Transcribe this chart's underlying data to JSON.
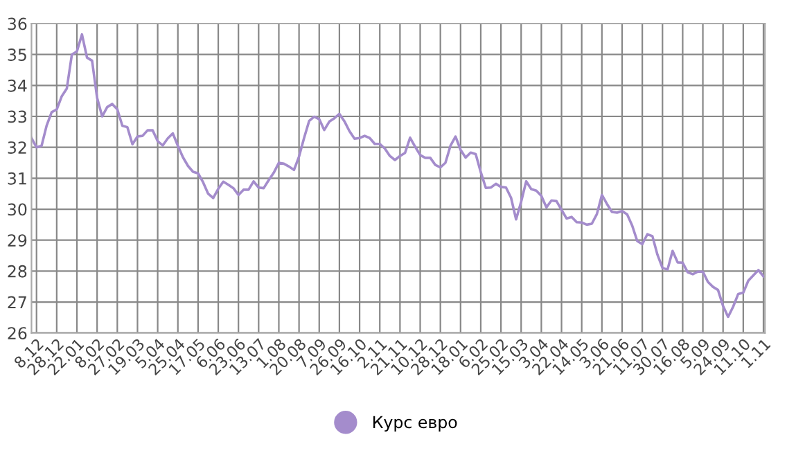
{
  "chart_data": {
    "type": "line",
    "categories": [
      null,
      "8.12",
      null,
      null,
      null,
      "28.12",
      null,
      null,
      null,
      "22.01",
      null,
      null,
      null,
      "8.02",
      null,
      null,
      null,
      "27.02",
      null,
      null,
      null,
      "19.03",
      null,
      null,
      null,
      "5.04",
      null,
      null,
      null,
      "25.04",
      null,
      null,
      null,
      "17.05",
      null,
      null,
      null,
      "6.06",
      null,
      null,
      null,
      "23.06",
      null,
      null,
      null,
      "13.07",
      null,
      null,
      null,
      "1.08",
      null,
      null,
      null,
      "20.08",
      null,
      null,
      null,
      "7.09",
      null,
      null,
      null,
      "26.09",
      null,
      null,
      null,
      "16.10",
      null,
      null,
      null,
      "2.11",
      null,
      null,
      null,
      "21.11",
      null,
      null,
      null,
      "10.12",
      null,
      null,
      null,
      "28.12",
      null,
      null,
      null,
      "18.01",
      null,
      null,
      null,
      "6.02",
      null,
      null,
      null,
      "25.02",
      null,
      null,
      null,
      "15.03",
      null,
      null,
      null,
      "3.04",
      null,
      null,
      null,
      "22.04",
      null,
      null,
      null,
      "14.05",
      null,
      null,
      null,
      "3.06",
      null,
      null,
      null,
      "21.06",
      null,
      null,
      null,
      "11.07",
      null,
      null,
      null,
      "30.07",
      null,
      null,
      null,
      "16.08",
      null,
      null,
      null,
      "5.09",
      null,
      null,
      null,
      "24.09",
      null,
      null,
      null,
      "11.10",
      null,
      null,
      null,
      "1.11"
    ],
    "series": [
      {
        "name": "Курс евро",
        "color": "#a48ccc",
        "values": [
          32.3,
          32.0,
          32.05,
          32.7,
          33.14,
          33.22,
          33.65,
          33.9,
          35.0,
          35.1,
          35.65,
          34.9,
          34.8,
          33.6,
          33.0,
          33.3,
          33.4,
          33.23,
          32.7,
          32.65,
          32.1,
          32.35,
          32.37,
          32.55,
          32.55,
          32.2,
          32.06,
          32.29,
          32.45,
          32.05,
          31.68,
          31.4,
          31.21,
          31.16,
          30.87,
          30.5,
          30.36,
          30.66,
          30.89,
          30.79,
          30.68,
          30.46,
          30.63,
          30.63,
          30.9,
          30.7,
          30.68,
          30.94,
          31.18,
          31.5,
          31.47,
          31.38,
          31.27,
          31.7,
          32.3,
          32.85,
          32.99,
          32.91,
          32.56,
          32.83,
          32.94,
          33.08,
          32.84,
          32.52,
          32.28,
          32.3,
          32.37,
          32.3,
          32.11,
          32.11,
          31.96,
          31.72,
          31.59,
          31.72,
          31.82,
          32.31,
          32.02,
          31.75,
          31.66,
          31.66,
          31.43,
          31.35,
          31.5,
          32.05,
          32.35,
          31.92,
          31.67,
          31.83,
          31.78,
          31.2,
          30.69,
          30.7,
          30.82,
          30.72,
          30.7,
          30.37,
          29.67,
          30.24,
          30.9,
          30.65,
          30.6,
          30.43,
          30.06,
          30.28,
          30.26,
          29.98,
          29.7,
          29.75,
          29.58,
          29.57,
          29.5,
          29.53,
          29.84,
          30.46,
          30.17,
          29.91,
          29.89,
          29.94,
          29.83,
          29.47,
          28.97,
          28.87,
          29.19,
          29.13,
          28.53,
          28.1,
          28.05,
          28.65,
          28.28,
          28.27,
          27.96,
          27.9,
          27.98,
          27.98,
          27.65,
          27.49,
          27.39,
          26.87,
          26.52,
          26.85,
          27.26,
          27.3,
          27.69,
          27.86,
          28.03,
          27.83
        ]
      }
    ],
    "ylim": [
      26,
      36
    ],
    "yticks": [
      26,
      27,
      28,
      29,
      30,
      31,
      32,
      33,
      34,
      35,
      36
    ],
    "grid": true,
    "legend": "bottom",
    "marker": "none",
    "line_style": "solid"
  }
}
